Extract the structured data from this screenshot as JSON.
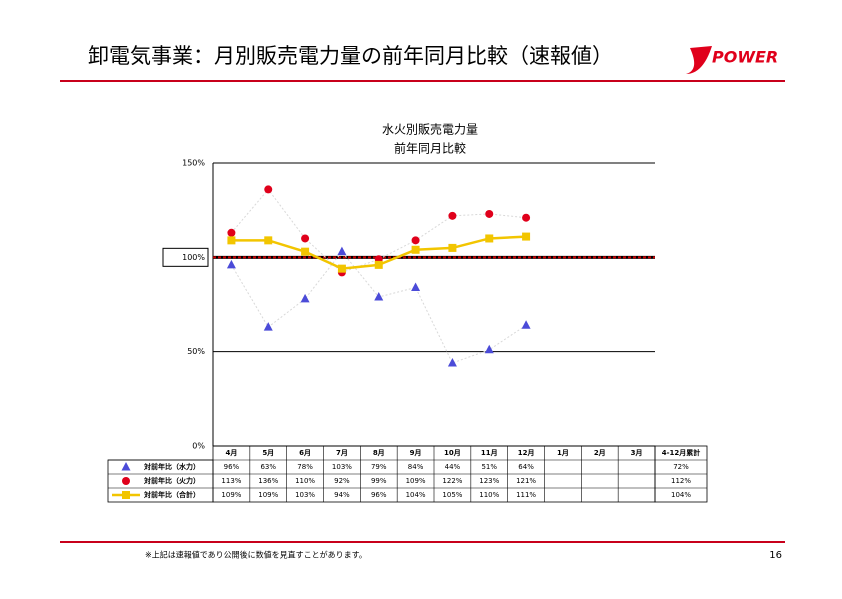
{
  "header": {
    "title": "卸電気事業：月別販売電力量の前年同月比較（速報値）",
    "logo": "POWER"
  },
  "chart_data": {
    "type": "line",
    "title": "水火別販売電力量",
    "subtitle": "前年同月比較",
    "categories": [
      "4月",
      "5月",
      "6月",
      "7月",
      "8月",
      "9月",
      "10月",
      "11月",
      "12月",
      "1月",
      "2月",
      "3月"
    ],
    "ylim": [
      0,
      150
    ],
    "yticks": [
      {
        "value": 0,
        "label": "0%"
      },
      {
        "value": 50,
        "label": "50%"
      },
      {
        "value": 100,
        "label": "100%"
      },
      {
        "value": 150,
        "label": "150%"
      }
    ],
    "grid": true,
    "reference_line": 100,
    "series": [
      {
        "name": "対前年比（水力）",
        "color": "#4b4bd8",
        "marker": "triangle",
        "line": "dotted",
        "values": [
          96,
          63,
          78,
          103,
          79,
          84,
          44,
          51,
          64,
          null,
          null,
          null
        ],
        "value_labels": [
          "96%",
          "63%",
          "78%",
          "103%",
          "79%",
          "84%",
          "44%",
          "51%",
          "64%",
          null,
          null,
          null
        ]
      },
      {
        "name": "対前年比（火力）",
        "color": "#e0001b",
        "marker": "circle",
        "line": "dotted",
        "values": [
          113,
          136,
          110,
          92,
          99,
          109,
          122,
          123,
          121,
          null,
          null,
          null
        ],
        "value_labels": [
          "113%",
          "136%",
          "110%",
          "92%",
          "99%",
          "109%",
          "122%",
          "123%",
          "121%",
          null,
          null,
          null
        ]
      },
      {
        "name": "対前年比（合計）",
        "color": "#f2c500",
        "marker": "square",
        "line": "solid",
        "values": [
          109,
          109,
          103,
          94,
          96,
          104,
          105,
          110,
          111,
          null,
          null,
          null
        ],
        "value_labels": [
          "109%",
          "109%",
          "103%",
          "94%",
          "96%",
          "104%",
          "105%",
          "110%",
          "111%",
          null,
          null,
          null
        ]
      }
    ],
    "cumulative": {
      "label": "4-12月累計",
      "values": [
        72,
        112,
        104
      ],
      "value_labels": [
        "72%",
        "112%",
        "104%"
      ]
    }
  },
  "footer": {
    "note": "※上記は速報値であり公開後に数値を見直すことがあります。",
    "page": "16"
  }
}
